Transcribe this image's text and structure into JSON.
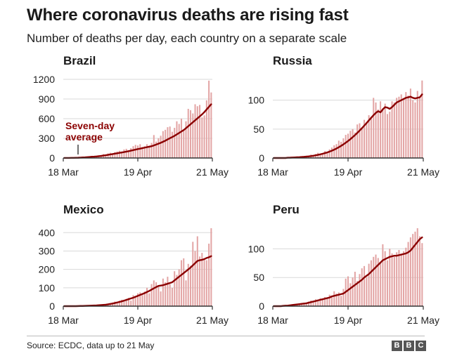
{
  "title": "Where coronavirus deaths are rising fast",
  "subtitle": "Number of deaths per day, each country on a separate scale",
  "source": "Source: ECDC, data up to 21 May",
  "logo": [
    "B",
    "B",
    "C"
  ],
  "colors": {
    "bars": "#e3a5a5",
    "line": "#8b0000",
    "axis": "#333333",
    "grid": "#d9d9d9"
  },
  "chart_data": [
    {
      "type": "bar",
      "title": "Brazil",
      "x_ticks": [
        "18 Mar",
        "19 Apr",
        "21 May"
      ],
      "x_range": [
        "18 Mar",
        "21 May"
      ],
      "ylim": [
        0,
        1200
      ],
      "y_ticks": [
        0,
        300,
        600,
        900,
        1200
      ],
      "annotation": "Seven-day average",
      "series": [
        {
          "name": "Daily deaths",
          "values": [
            1,
            0,
            3,
            2,
            4,
            0,
            6,
            10,
            12,
            15,
            20,
            25,
            30,
            20,
            35,
            40,
            45,
            60,
            50,
            70,
            80,
            60,
            90,
            100,
            110,
            100,
            130,
            140,
            120,
            150,
            180,
            200,
            190,
            210,
            170,
            180,
            210,
            190,
            230,
            350,
            250,
            300,
            340,
            410,
            430,
            470,
            480,
            400,
            460,
            560,
            520,
            600,
            440,
            560,
            750,
            730,
            680,
            820,
            790,
            810,
            620,
            650,
            880,
            1180,
            1000
          ],
          "estimated": true
        },
        {
          "name": "Seven-day average",
          "values": [
            1,
            1,
            1,
            2,
            2,
            3,
            4,
            6,
            8,
            10,
            13,
            16,
            19,
            21,
            24,
            28,
            32,
            37,
            42,
            48,
            54,
            60,
            66,
            72,
            78,
            84,
            90,
            97,
            104,
            112,
            120,
            128,
            136,
            143,
            150,
            158,
            165,
            172,
            180,
            192,
            205,
            218,
            232,
            248,
            264,
            283,
            302,
            320,
            338,
            360,
            382,
            404,
            426,
            455,
            485,
            515,
            545,
            575,
            605,
            635,
            665,
            700,
            740,
            780,
            820
          ],
          "estimated": true
        }
      ]
    },
    {
      "type": "bar",
      "title": "Russia",
      "x_ticks": [
        "18 Mar",
        "19 Apr",
        "21 May"
      ],
      "x_range": [
        "18 Mar",
        "21 May"
      ],
      "ylim": [
        0,
        136
      ],
      "y_ticks": [
        0,
        50,
        100
      ],
      "series": [
        {
          "name": "Daily deaths",
          "values": [
            0,
            0,
            0,
            0,
            0,
            1,
            0,
            1,
            1,
            2,
            1,
            2,
            2,
            3,
            4,
            3,
            6,
            5,
            7,
            9,
            6,
            8,
            12,
            10,
            15,
            18,
            22,
            24,
            30,
            28,
            34,
            40,
            42,
            47,
            50,
            44,
            58,
            60,
            52,
            66,
            62,
            74,
            70,
            104,
            96,
            84,
            98,
            86,
            94,
            76,
            80,
            98,
            96,
            104,
            106,
            110,
            100,
            114,
            108,
            120,
            100,
            96,
            116,
            105,
            134
          ],
          "estimated": true
        },
        {
          "name": "Seven-day average",
          "values": [
            0,
            0,
            0,
            0,
            0,
            0,
            0.5,
            0.6,
            0.8,
            1,
            1.2,
            1.4,
            1.7,
            2,
            2.4,
            2.8,
            3.3,
            3.9,
            4.6,
            5.4,
            6.3,
            7.3,
            8.4,
            9.6,
            11,
            12.6,
            14.4,
            16.4,
            18.6,
            21,
            23.6,
            26.4,
            29.4,
            32.6,
            36,
            39.6,
            43.4,
            47.4,
            51.6,
            56,
            60.4,
            65,
            69.6,
            74,
            78,
            81,
            79,
            84,
            88,
            87,
            85,
            88,
            92,
            96,
            98,
            100,
            102,
            104,
            105,
            106,
            104,
            103,
            104,
            105,
            110
          ],
          "estimated": true
        }
      ]
    },
    {
      "type": "bar",
      "title": "Mexico",
      "x_ticks": [
        "18 Mar",
        "19 Apr",
        "21 May"
      ],
      "x_range": [
        "18 Mar",
        "21 May"
      ],
      "ylim": [
        0,
        424
      ],
      "y_ticks": [
        0,
        100,
        200,
        300,
        400
      ],
      "series": [
        {
          "name": "Daily deaths",
          "values": [
            0,
            0,
            0,
            0,
            0,
            0,
            1,
            0,
            1,
            2,
            1,
            2,
            3,
            2,
            4,
            5,
            6,
            8,
            10,
            12,
            14,
            20,
            25,
            20,
            30,
            35,
            28,
            40,
            45,
            30,
            60,
            50,
            70,
            75,
            60,
            80,
            100,
            70,
            120,
            140,
            130,
            110,
            80,
            150,
            130,
            160,
            120,
            100,
            190,
            170,
            200,
            250,
            260,
            140,
            230,
            220,
            350,
            300,
            380,
            270,
            290,
            260,
            250,
            340,
            424
          ],
          "estimated": true
        },
        {
          "name": "Seven-day average",
          "values": [
            0,
            0,
            0,
            0,
            0,
            0,
            0.5,
            1,
            1,
            1.5,
            2,
            2.5,
            3,
            3.5,
            4,
            5,
            6,
            7,
            8,
            10,
            12,
            14,
            17,
            20,
            23,
            26,
            30,
            34,
            38,
            42,
            46,
            51,
            56,
            61,
            66,
            71,
            77,
            83,
            90,
            97,
            104,
            110,
            112,
            114,
            118,
            122,
            126,
            130,
            140,
            150,
            160,
            170,
            180,
            190,
            200,
            210,
            222,
            234,
            246,
            250,
            252,
            256,
            262,
            266,
            272
          ],
          "estimated": true
        }
      ]
    },
    {
      "type": "bar",
      "title": "Peru",
      "x_ticks": [
        "18 Mar",
        "19 Apr",
        "21 May"
      ],
      "x_range": [
        "18 Mar",
        "21 May"
      ],
      "ylim": [
        0,
        136
      ],
      "y_ticks": [
        0,
        50,
        100
      ],
      "series": [
        {
          "name": "Daily deaths",
          "values": [
            0,
            0,
            0,
            0,
            0,
            1,
            0,
            1,
            2,
            3,
            2,
            5,
            4,
            6,
            5,
            8,
            10,
            7,
            12,
            9,
            14,
            11,
            16,
            13,
            20,
            18,
            26,
            22,
            24,
            18,
            30,
            48,
            52,
            40,
            50,
            60,
            44,
            56,
            66,
            70,
            50,
            74,
            80,
            86,
            90,
            84,
            76,
            108,
            96,
            80,
            100,
            92,
            86,
            94,
            98,
            90,
            96,
            102,
            112,
            120,
            126,
            130,
            136,
            122,
            110
          ],
          "estimated": true
        },
        {
          "name": "Seven-day average",
          "values": [
            0,
            0,
            0,
            0,
            0.5,
            0.8,
            1,
            1.5,
            2,
            2.5,
            3,
            3.5,
            4,
            4.5,
            5,
            6,
            7,
            8,
            9,
            10,
            11,
            12,
            13,
            14,
            15,
            17,
            18,
            19,
            20,
            21,
            22,
            25,
            28,
            31,
            34,
            37,
            40,
            43,
            46,
            50,
            53,
            56,
            60,
            64,
            68,
            72,
            76,
            80,
            82,
            84,
            86,
            87,
            88,
            88,
            89,
            90,
            91,
            92,
            94,
            97,
            102,
            107,
            112,
            117,
            120
          ],
          "estimated": true
        }
      ]
    }
  ]
}
